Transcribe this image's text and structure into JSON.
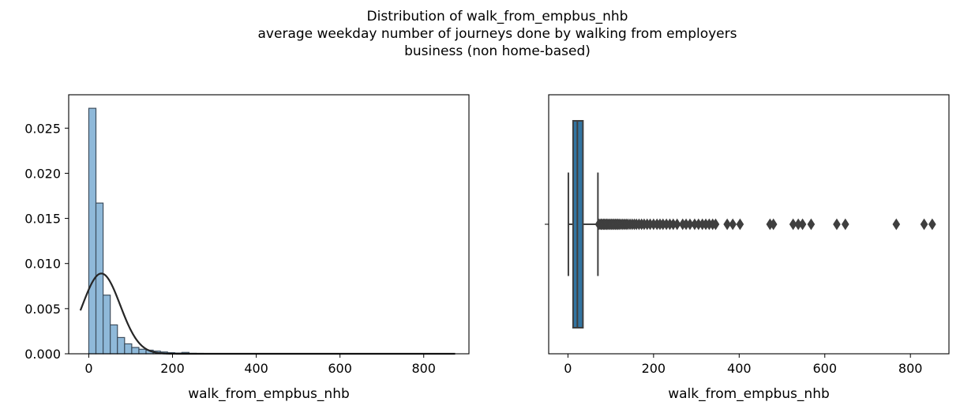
{
  "figure": {
    "title_lines": [
      "Distribution of walk_from_empbus_nhb",
      "average weekday number of journeys done by walking from employers",
      "business (non home-based)"
    ]
  },
  "chart_data": [
    {
      "type": "bar",
      "subtype": "histogram_with_kde",
      "xlabel": "walk_from_empbus_nhb",
      "ylabel": "",
      "xlim": [
        -48,
        908
      ],
      "ylim": [
        0,
        0.0287
      ],
      "xticks": [
        0,
        200,
        400,
        600,
        800
      ],
      "xtick_labels": [
        "0",
        "200",
        "400",
        "600",
        "800"
      ],
      "yticks": [
        0.0,
        0.005,
        0.01,
        0.015,
        0.02,
        0.025
      ],
      "ytick_labels": [
        "0.000",
        "0.005",
        "0.010",
        "0.015",
        "0.020",
        "0.025"
      ],
      "bin_width": 17.1,
      "bins": [
        {
          "x0": 0,
          "x1": 17.1,
          "density": 0.0272
        },
        {
          "x0": 17.1,
          "x1": 34.2,
          "density": 0.0167
        },
        {
          "x0": 34.2,
          "x1": 51.3,
          "density": 0.0065
        },
        {
          "x0": 51.3,
          "x1": 68.4,
          "density": 0.0032
        },
        {
          "x0": 68.4,
          "x1": 85.5,
          "density": 0.0018
        },
        {
          "x0": 85.5,
          "x1": 102.6,
          "density": 0.0011
        },
        {
          "x0": 102.6,
          "x1": 119.7,
          "density": 0.0007
        },
        {
          "x0": 119.7,
          "x1": 136.8,
          "density": 0.0005
        },
        {
          "x0": 136.8,
          "x1": 153.9,
          "density": 0.0004
        },
        {
          "x0": 153.9,
          "x1": 171.0,
          "density": 0.0003
        },
        {
          "x0": 171.0,
          "x1": 188.1,
          "density": 0.0002
        },
        {
          "x0": 188.1,
          "x1": 205.2,
          "density": 0.00012
        },
        {
          "x0": 205.2,
          "x1": 222.3,
          "density": 8e-05
        },
        {
          "x0": 222.3,
          "x1": 239.4,
          "density": 0.00015
        },
        {
          "x0": 239.4,
          "x1": 256.5,
          "density": 5e-05
        },
        {
          "x0": 256.5,
          "x1": 273.6,
          "density": 4e-05
        },
        {
          "x0": 273.6,
          "x1": 290.7,
          "density": 3e-05
        },
        {
          "x0": 290.7,
          "x1": 307.8,
          "density": 2e-05
        },
        {
          "x0": 307.8,
          "x1": 324.9,
          "density": 2e-05
        },
        {
          "x0": 324.9,
          "x1": 342.0,
          "density": 2e-05
        },
        {
          "x0": 342.0,
          "x1": 359.1,
          "density": 1e-05
        },
        {
          "x0": 359.1,
          "x1": 376.2,
          "density": 1e-05
        },
        {
          "x0": 376.2,
          "x1": 393.3,
          "density": 1e-05
        },
        {
          "x0": 393.3,
          "x1": 410.4,
          "density": 1e-05
        }
      ],
      "fit_curve": {
        "type": "normal",
        "mu": 30,
        "sigma": 45,
        "peak": 0.0089,
        "x_range": [
          -20,
          875
        ]
      },
      "bar_color": "#8fb9d9",
      "bar_edge_color": "#3d4e5e",
      "curve_color": "#262626"
    },
    {
      "type": "boxplot",
      "orientation": "horizontal",
      "xlabel": "walk_from_empbus_nhb",
      "xlim": [
        -45,
        890
      ],
      "xticks": [
        0,
        200,
        400,
        600,
        800
      ],
      "xtick_labels": [
        "0",
        "200",
        "400",
        "600",
        "800"
      ],
      "box": {
        "whisker_low": 1,
        "q1": 12,
        "median": 22,
        "q3": 35,
        "whisker_high": 70
      },
      "outliers": [
        72,
        75,
        78,
        80,
        83,
        85,
        88,
        90,
        93,
        96,
        99,
        102,
        105,
        108,
        111,
        114,
        117,
        120,
        124,
        128,
        132,
        136,
        140,
        145,
        150,
        155,
        160,
        166,
        172,
        178,
        185,
        192,
        200,
        208,
        215,
        222,
        230,
        238,
        246,
        255,
        268,
        276,
        285,
        296,
        305,
        314,
        322,
        330,
        338,
        345,
        372,
        385,
        402,
        472,
        480,
        526,
        538,
        548,
        568,
        628,
        648,
        767,
        832,
        851
      ],
      "box_color": "#3274a1",
      "line_color": "#3f3f3f"
    }
  ]
}
